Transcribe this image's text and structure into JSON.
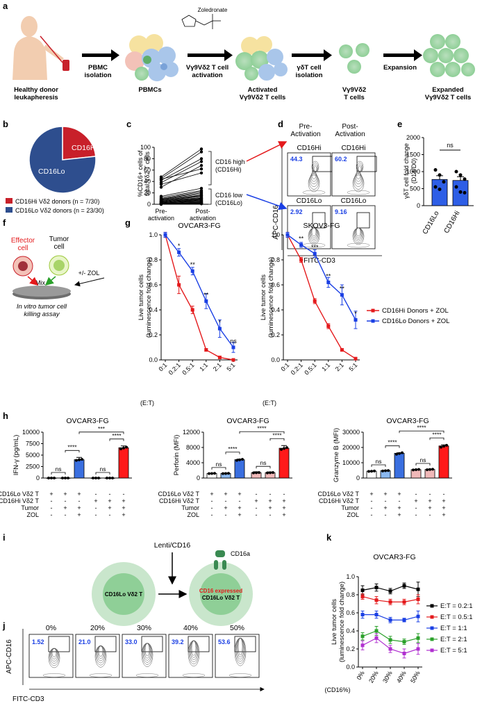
{
  "panel_labels": [
    "a",
    "b",
    "c",
    "d",
    "e",
    "f",
    "g",
    "h",
    "i",
    "j",
    "k"
  ],
  "a": {
    "drug": "Zoledronate",
    "arrows": [
      "PBMC\nisolation",
      "Vγ9Vδ2 T cell\nactivation",
      "γδT cell\nisolation",
      "Expansion"
    ],
    "stages": [
      "Healthy donor\nleukapheresis",
      "PBMCs",
      "Activated\nVγ9Vδ2 T cells",
      "Vγ9Vδ2\nT cells",
      "Expanded\nVγ9Vδ2 T cells"
    ]
  },
  "b": {
    "slice_hi": "CD16Hi",
    "slice_lo": "CD16Lo",
    "legend_hi": "CD16Hi Vδ2 donors (n = 7/30)",
    "legend_lo": "CD16Lo Vδ2 donors (n = 23/30)",
    "colors": {
      "hi": "#c8202a",
      "lo": "#2e4e8e"
    }
  },
  "c": {
    "ylabel": "%CD16+ cells of total Vδ2 T cells",
    "categories": [
      "Pre-\nactivation",
      "Post-\nactivation"
    ],
    "high_label": "CD16 high\n(CD16Hi)",
    "low_label": "CD16 low\n(CD16Lo)",
    "yticks": [
      "0",
      "20",
      "40",
      "60",
      "80",
      "100"
    ]
  },
  "d": {
    "col_titles": [
      "Pre-\nActivation",
      "Post-\nActivation"
    ],
    "gates": [
      "CD16Hi",
      "CD16Hi",
      "CD16Lo",
      "CD16Lo"
    ],
    "values": [
      "44.3",
      "60.2",
      "2.92",
      "9.16"
    ],
    "ylabel": "APC-CD16",
    "xlabel": "FITC-CD3"
  },
  "e": {
    "ylabel": "γδT cell fold change (D14/D0)",
    "categories": [
      "CD16Lo",
      "CD16Hi"
    ],
    "sig": "ns",
    "yticks": [
      "0",
      "500",
      "1000",
      "1500",
      "2000"
    ]
  },
  "f": {
    "effector": "Effector\ncell",
    "tumor": "Tumor\ncell",
    "mix": "Mix",
    "zol": "+/- ZOL",
    "dish": "Dish",
    "assay": "In vitro tumor cell\nkilling assay"
  },
  "g": {
    "ylabel": "Live tumor cells\n(luminescence fold change)",
    "xlabel": "(E:T)",
    "legend_hi": "CD16Hi Donors + ZOL",
    "legend_lo": "CD16Lo Donors + ZOL",
    "yticks": [
      "0.0",
      "0.2",
      "0.4",
      "0.6",
      "0.8",
      "1.0"
    ],
    "xcats": [
      "0:1",
      "0.2:1",
      "0.5:1",
      "1:1",
      "2:1",
      "5:1"
    ]
  },
  "h": {
    "row_labels": [
      "CD16Lo Vδ2 T",
      "CD16Hi Vδ2 T",
      "Tumor",
      "ZOL"
    ],
    "signs": [
      [
        "+",
        "+",
        "+",
        "-",
        "-",
        "-"
      ],
      [
        "-",
        "-",
        "-",
        "+",
        "+",
        "+"
      ],
      [
        "-",
        "+",
        "+",
        "-",
        "+",
        "+"
      ],
      [
        "-",
        "-",
        "+",
        "-",
        "-",
        "+"
      ]
    ]
  },
  "i": {
    "lenti": "Lenti/CD16",
    "cd16a": "CD16a",
    "cell_left": "CD16Lo Vδ2 T",
    "expressed": "CD16 expressed",
    "cell_right": "CD16Lo Vδ2 T"
  },
  "j": {
    "titles": [
      "0%",
      "20%",
      "30%",
      "40%",
      "50%"
    ],
    "values": [
      "1.52",
      "21.0",
      "33.0",
      "39.2",
      "53.6"
    ],
    "ylabel": "APC-CD16",
    "xlabel": "FITC-CD3"
  },
  "k": {
    "ylabel": "Live tumor cells\n(luminescence fold change)",
    "xtitle": "(CD16%)",
    "yticks": [
      "0.0",
      "0.2",
      "0.4",
      "0.6",
      "0.8",
      "1.0"
    ]
  },
  "chart_data": [
    {
      "type": "scatter",
      "panel": "c",
      "xlabel": "",
      "ylabel": "%CD16+ cells of total Vδ2 T cells",
      "categories": [
        "Pre-activation",
        "Post-activation"
      ],
      "ylim": [
        0,
        100
      ],
      "series": [
        {
          "values": [
            48,
            97
          ]
        },
        {
          "values": [
            45,
            92
          ]
        },
        {
          "values": [
            42,
            80
          ]
        },
        {
          "values": [
            38,
            75
          ]
        },
        {
          "values": [
            30,
            68
          ]
        },
        {
          "values": [
            44,
            62
          ]
        },
        {
          "values": [
            35,
            55
          ]
        },
        {
          "values": [
            14,
            28
          ]
        },
        {
          "values": [
            12,
            24
          ]
        },
        {
          "values": [
            10,
            22
          ]
        },
        {
          "values": [
            9,
            20
          ]
        },
        {
          "values": [
            8,
            18
          ]
        },
        {
          "values": [
            7,
            16
          ]
        },
        {
          "values": [
            6,
            15
          ]
        },
        {
          "values": [
            5,
            14
          ]
        },
        {
          "values": [
            5,
            12
          ]
        },
        {
          "values": [
            4,
            11
          ]
        },
        {
          "values": [
            4,
            10
          ]
        },
        {
          "values": [
            3,
            9
          ]
        },
        {
          "values": [
            3,
            8
          ]
        },
        {
          "values": [
            2,
            7
          ]
        },
        {
          "values": [
            2,
            6
          ]
        },
        {
          "values": [
            2,
            5
          ]
        },
        {
          "values": [
            1,
            4
          ]
        },
        {
          "values": [
            1,
            3
          ]
        },
        {
          "values": [
            1,
            3
          ]
        },
        {
          "values": [
            1,
            2
          ]
        },
        {
          "values": [
            1,
            2
          ]
        },
        {
          "values": [
            0,
            1
          ]
        },
        {
          "values": [
            0,
            1
          ]
        }
      ]
    },
    {
      "type": "bar",
      "panel": "e",
      "xlabel": "",
      "ylabel": "γδT cell fold change (D14/D0)",
      "categories": [
        "CD16Lo",
        "CD16Hi"
      ],
      "values": [
        770,
        740
      ],
      "errors": [
        110,
        110
      ],
      "points": [
        [
          1050,
          900,
          700,
          550,
          480
        ],
        [
          1000,
          900,
          780,
          550,
          400,
          380
        ]
      ],
      "ylim": [
        0,
        2000
      ]
    },
    {
      "type": "line",
      "panel": "g-left",
      "title": "OVCAR3-FG",
      "xlabel": "(E:T)",
      "ylabel": "Live tumor cells\n(luminescence fold change)",
      "categories": [
        "0:1",
        "0.2:1",
        "0.5:1",
        "1:1",
        "2:1",
        "5:1"
      ],
      "ylim": [
        0,
        1.0
      ],
      "series": [
        {
          "name": "CD16Hi Donors + ZOL",
          "values": [
            1.0,
            0.6,
            0.4,
            0.08,
            0.02,
            0.0
          ],
          "errors": [
            0.02,
            0.07,
            0.03,
            0.01,
            0.01,
            0.01
          ]
        },
        {
          "name": "CD16Lo Donors + ZOL",
          "values": [
            1.0,
            0.86,
            0.71,
            0.47,
            0.25,
            0.1
          ],
          "errors": [
            0.02,
            0.03,
            0.03,
            0.06,
            0.07,
            0.04
          ]
        }
      ],
      "significance": [
        "",
        "*",
        "**",
        "**",
        "*",
        "ns"
      ]
    },
    {
      "type": "line",
      "panel": "g-right",
      "title": "SKOV3-FG",
      "xlabel": "(E:T)",
      "ylabel": "Live tumor cells\n(luminescence fold change)",
      "categories": [
        "0:1",
        "0.2:1",
        "0.5:1",
        "1:1",
        "2:1",
        "5:1"
      ],
      "ylim": [
        0,
        1.0
      ],
      "series": [
        {
          "name": "CD16Hi Donors + ZOL",
          "values": [
            1.0,
            0.8,
            0.47,
            0.27,
            0.08,
            0.01
          ],
          "errors": [
            0.02,
            0.02,
            0.02,
            0.02,
            0.01,
            0.01
          ]
        },
        {
          "name": "CD16Lo Donors + ZOL",
          "values": [
            1.0,
            0.92,
            0.85,
            0.62,
            0.52,
            0.32
          ],
          "errors": [
            0.02,
            0.02,
            0.03,
            0.04,
            0.08,
            0.07
          ]
        }
      ],
      "significance": [
        "",
        "**",
        "***",
        "**",
        "**",
        "*"
      ]
    },
    {
      "type": "bar",
      "panel": "h-1",
      "title": "OVCAR3-FG",
      "ylabel": "IFN-γ (pg/mL)",
      "ylim": [
        0,
        10000
      ],
      "yticks": [
        "0",
        "2500",
        "5000",
        "7500",
        "10000"
      ],
      "values": [
        0,
        0,
        4000,
        0,
        0,
        6600
      ],
      "errors": [
        0,
        0,
        500,
        0,
        0,
        400
      ],
      "colors": [
        "#ffffff",
        "#ffffff",
        "#3a6fe0",
        "#f0b8b8",
        "#f0b8b8",
        "#ff1a1a"
      ],
      "significance": [
        "ns",
        "****",
        "ns",
        "****",
        "***"
      ]
    },
    {
      "type": "bar",
      "panel": "h-2",
      "title": "OVCAR3-FG",
      "ylabel": "Perforin (MFI)",
      "ylim": [
        0,
        12000
      ],
      "yticks": [
        "0",
        "4000",
        "8000",
        "12000"
      ],
      "values": [
        1200,
        1200,
        4800,
        1400,
        1400,
        7800
      ],
      "errors": [
        50,
        100,
        150,
        250,
        200,
        700
      ],
      "colors": [
        "#ffffff",
        "#8ab8f0",
        "#3a6fe0",
        "#f0b8b8",
        "#f0b8b8",
        "#ff1a1a"
      ],
      "significance": [
        "ns",
        "****",
        "ns",
        "****",
        "****"
      ]
    },
    {
      "type": "bar",
      "panel": "h-3",
      "title": "OVCAR3-FG",
      "ylabel": "Granzyme B (MFI)",
      "ylim": [
        0,
        30000
      ],
      "yticks": [
        "0",
        "10000",
        "20000",
        "30000"
      ],
      "values": [
        4500,
        4800,
        16200,
        5500,
        5600,
        21000
      ],
      "errors": [
        100,
        200,
        300,
        150,
        300,
        700
      ],
      "colors": [
        "#ffffff",
        "#8ab8f0",
        "#3a6fe0",
        "#f0b8b8",
        "#f0b8b8",
        "#ff1a1a"
      ],
      "significance": [
        "ns",
        "****",
        "ns",
        "****",
        "****"
      ]
    },
    {
      "type": "line",
      "panel": "k",
      "title": "OVCAR3-FG",
      "xlabel": "(CD16%)",
      "ylabel": "Live tumor cells\n(luminescence fold change)",
      "categories": [
        "0%",
        "20%",
        "30%",
        "40%",
        "50%"
      ],
      "ylim": [
        0,
        1.0
      ],
      "series": [
        {
          "name": "E:T = 0.2:1",
          "color": "#000000",
          "values": [
            0.85,
            0.88,
            0.84,
            0.9,
            0.86
          ],
          "errors": [
            0.05,
            0.04,
            0.03,
            0.03,
            0.08
          ]
        },
        {
          "name": "E:T = 0.5:1",
          "color": "#e41a1c",
          "values": [
            0.78,
            0.74,
            0.72,
            0.72,
            0.75
          ],
          "errors": [
            0.03,
            0.04,
            0.03,
            0.03,
            0.05
          ]
        },
        {
          "name": "E:T = 1:1",
          "color": "#1a3fe4",
          "values": [
            0.58,
            0.58,
            0.52,
            0.52,
            0.56
          ],
          "errors": [
            0.04,
            0.04,
            0.03,
            0.02,
            0.06
          ]
        },
        {
          "name": "E:T = 2:1",
          "color": "#2aa02a",
          "values": [
            0.34,
            0.4,
            0.3,
            0.28,
            0.32
          ],
          "errors": [
            0.04,
            0.05,
            0.04,
            0.03,
            0.05
          ]
        },
        {
          "name": "E:T = 5:1",
          "color": "#b030d0",
          "values": [
            0.24,
            0.32,
            0.2,
            0.15,
            0.2
          ],
          "errors": [
            0.05,
            0.05,
            0.04,
            0.05,
            0.06
          ]
        }
      ]
    }
  ]
}
